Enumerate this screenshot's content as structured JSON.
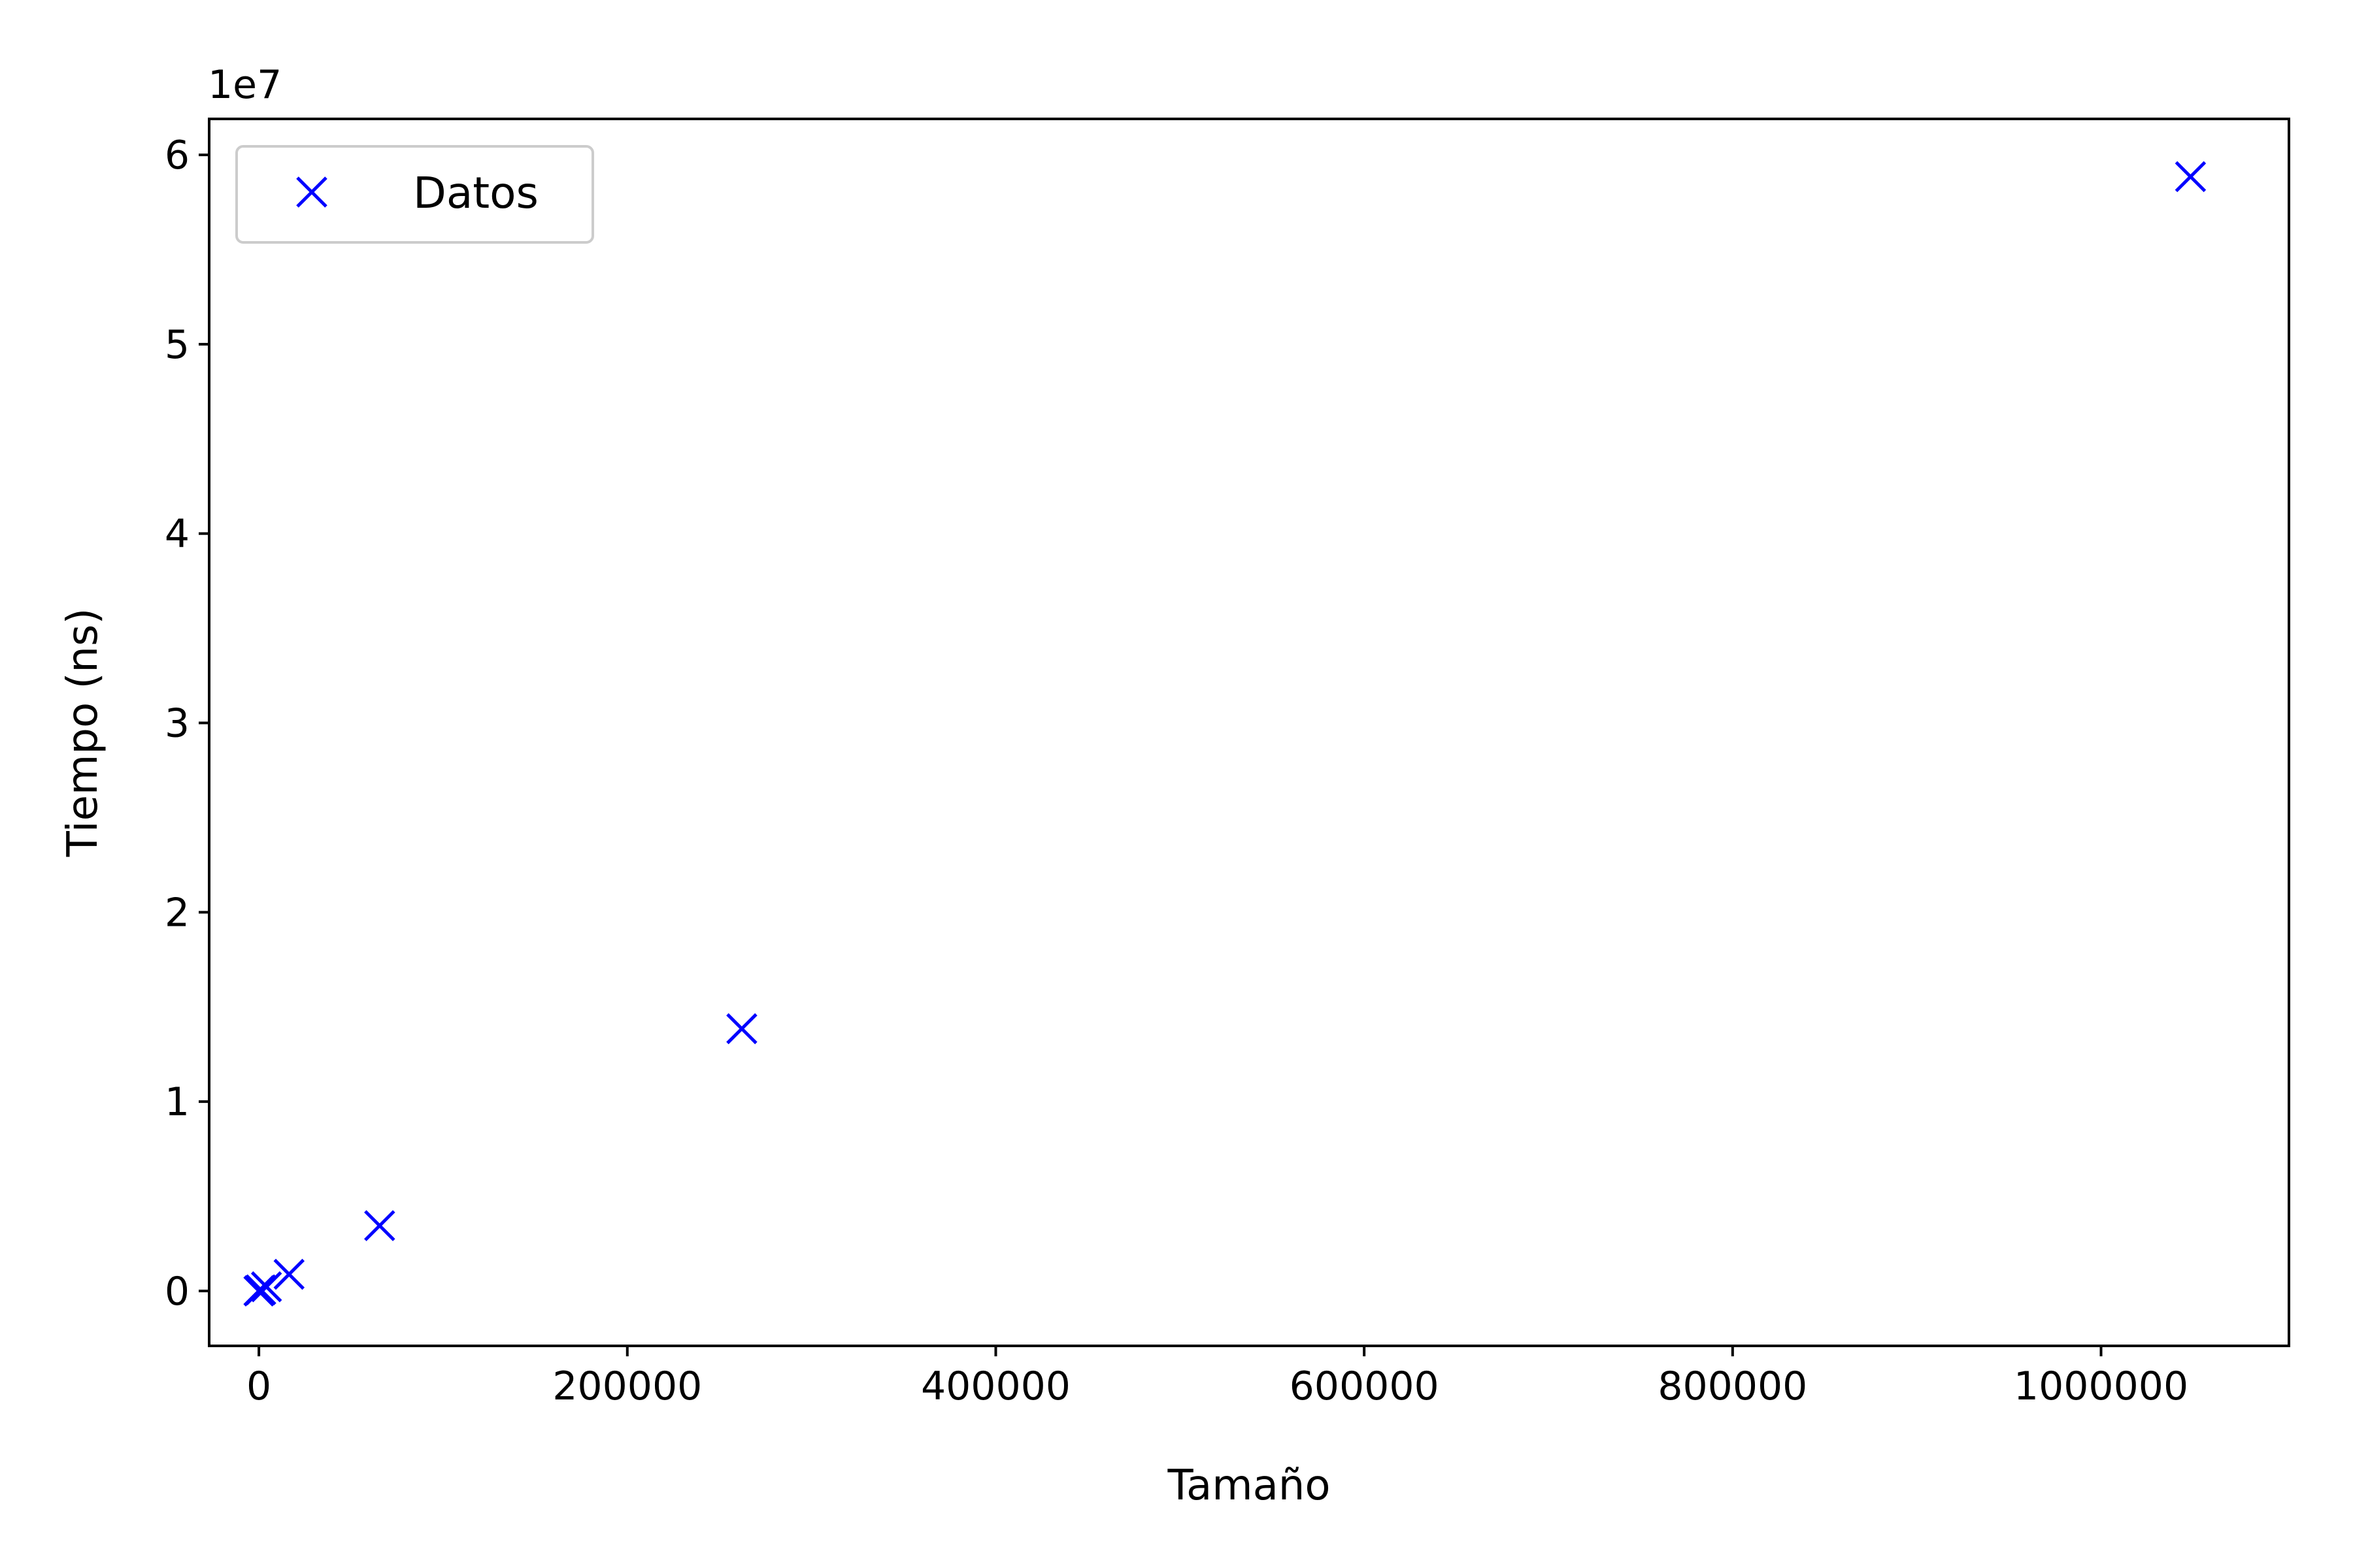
{
  "chart_data": {
    "type": "scatter",
    "title": "",
    "xlabel": "Tamaño",
    "ylabel": "Tiempo (ns)",
    "y_offset_label": "1e7",
    "xlim": [
      -27000,
      1102000
    ],
    "ylim": [
      -2900000,
      61900000
    ],
    "x_ticks": [
      0,
      200000,
      400000,
      600000,
      800000,
      1000000
    ],
    "x_tick_labels": [
      "0",
      "200000",
      "400000",
      "600000",
      "800000",
      "1000000"
    ],
    "y_ticks": [
      0,
      10000000,
      20000000,
      30000000,
      40000000,
      50000000,
      60000000
    ],
    "y_tick_labels": [
      "0",
      "1",
      "2",
      "3",
      "4",
      "5",
      "6"
    ],
    "grid": false,
    "legend_position": "top-left",
    "marker": "x",
    "series": [
      {
        "name": "Datos",
        "color": "#0000ff",
        "points": [
          {
            "x": 16,
            "y": 1000
          },
          {
            "x": 64,
            "y": 4000
          },
          {
            "x": 256,
            "y": 15000
          },
          {
            "x": 1024,
            "y": 60000
          },
          {
            "x": 4096,
            "y": 220000
          },
          {
            "x": 16384,
            "y": 880000
          },
          {
            "x": 65536,
            "y": 3450000
          },
          {
            "x": 262144,
            "y": 13850000
          },
          {
            "x": 1048576,
            "y": 58850000
          }
        ]
      }
    ]
  }
}
